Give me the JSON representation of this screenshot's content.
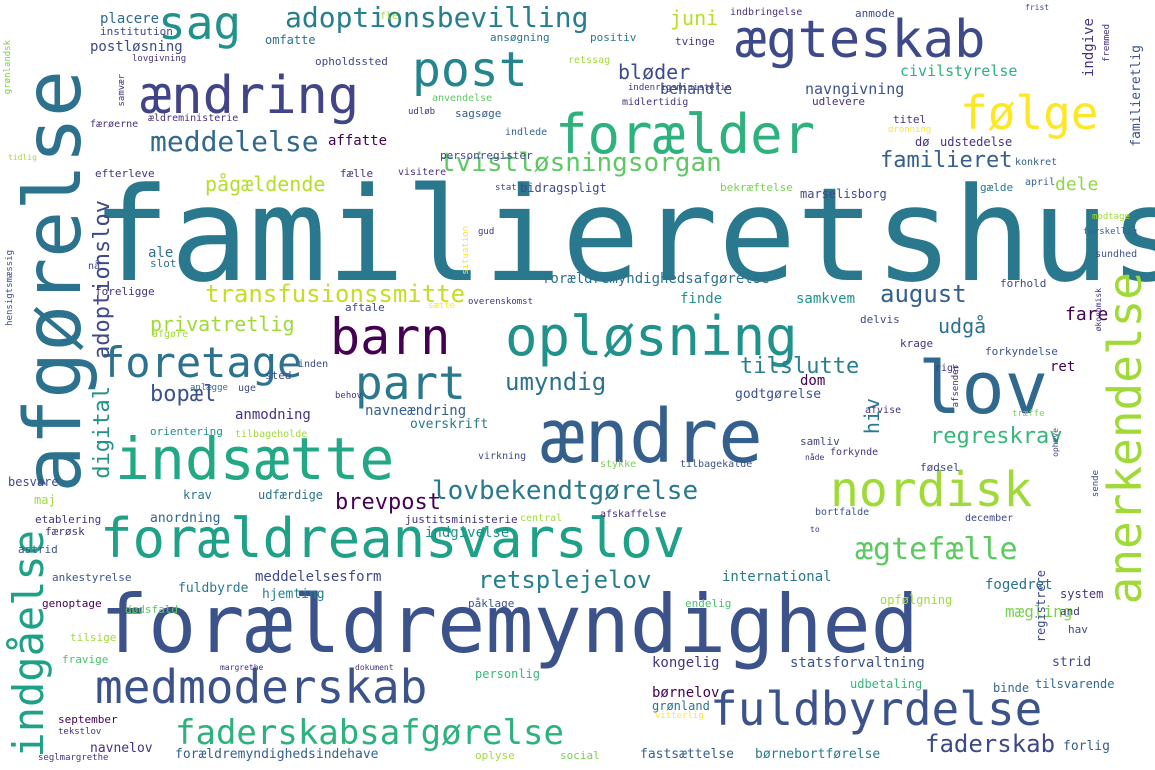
{
  "colors": {
    "background": "#ffffff",
    "palette": [
      "#440154",
      "#46327e",
      "#365c8d",
      "#277f8e",
      "#1fa187",
      "#4ac16d",
      "#a0da39",
      "#fde725"
    ]
  },
  "words": [
    "familieretshus",
    "forældremyndighed",
    "afgørelse",
    "ændre",
    "lov",
    "indsætte",
    "opløsning",
    "forældreansvarslov",
    "ægteskab",
    "forælder",
    "ændring",
    "post",
    "sag",
    "barn",
    "part",
    "anerkendelse",
    "medmoderskab",
    "nordisk",
    "fuldbyrdelse",
    "følge",
    "foretage",
    "indgåelse",
    "faderskabsafgørelse",
    "adoptionsbevilling",
    "meddelelse",
    "ægtefælle",
    "lovbekendtgørelse",
    "tvistløsningsorgan",
    "retsplejelov",
    "transfusionssmitte",
    "familieret",
    "faderskab",
    "umyndig",
    "august",
    "privatretlig",
    "digital",
    "adoptionslov",
    "regreskrav",
    "tilslutte",
    "pågældende",
    "brevpost",
    "bopæl",
    "bløder",
    "juni",
    "udgå",
    "hiv",
    "dele",
    "fare",
    "mægling",
    "civilstyrelse",
    "behandle",
    "navngivning",
    "affatte",
    "postløsning",
    "placere",
    "anmodning",
    "navneændring",
    "meddelelsesform",
    "kongelig",
    "børnelov",
    "forældremyndighedsafgørelse",
    "fuldbyrde",
    "finde",
    "samkvem",
    "international",
    "statsforvaltning",
    "indgive",
    "fogedret",
    "hjemting",
    "indgivelse",
    "anordning",
    "krav",
    "udfærdige",
    "dom",
    "ret",
    "godtgørelse",
    "overskrift",
    "ale",
    "familieretlig",
    "forældremyndighedsindehave",
    "fastsættelse",
    "børnebortførelse",
    "forlig",
    "navnelov",
    "grønland",
    "oplyse",
    "social",
    "september",
    "tekstlov",
    "seglmargrethe",
    "personlig",
    "udbetaling",
    "tilsvarende",
    "binde",
    "strid",
    "registrere",
    "system",
    "hav",
    "and",
    "opfølgning",
    "endelig",
    "påklage",
    "dødsfald",
    "genoptage",
    "ankestyrelse",
    "astrid",
    "færøsk",
    "maj",
    "besvare",
    "etablering",
    "tilsige",
    "fravige",
    "margrethe",
    "dokument",
    "vitterlig",
    "institution",
    "lovgivning",
    "omfatte",
    "ansøgning",
    "positiv",
    "indbringelse",
    "anmode",
    "frist",
    "tvinge",
    "fremmed",
    "opholdssted",
    "retssag",
    "anvendelse",
    "midlertidig",
    "indenrigsministerie",
    "ældreministerie",
    "udløb",
    "sagsøge",
    "færøerne",
    "samvær",
    "grønlandsk",
    "indlede",
    "tidlig",
    "efterleve",
    "personregister",
    "visitere",
    "fælle",
    "stat",
    "bidragspligt",
    "bekræftelse",
    "gælde",
    "april",
    "konkret",
    "marselisborg",
    "dø",
    "udstedelse",
    "titel",
    "dronning",
    "udlevere",
    "slot",
    "gud",
    "situation",
    "modtage",
    "forskellig",
    "sundhed",
    "hensigtsmæssig",
    "nå",
    "foreligge",
    "overenskomst",
    "aftale",
    "sætte",
    "afgøre",
    "delvis",
    "forhold",
    "økonomisk",
    "krage",
    "forkyndelse",
    "afsender",
    "rige",
    "sted",
    "inden",
    "uge",
    "anlægge",
    "behov",
    "orientering",
    "tilbageholde",
    "virkning",
    "stykke",
    "tilbagekalde",
    "samliv",
    "nåde",
    "fødsel",
    "afvise",
    "forkynde",
    "træffe",
    "ophæve",
    "sende",
    "central",
    "justitsministerie",
    "afskaffelse",
    "bortfalde",
    "december",
    "to",
    "fle"
  ]
}
